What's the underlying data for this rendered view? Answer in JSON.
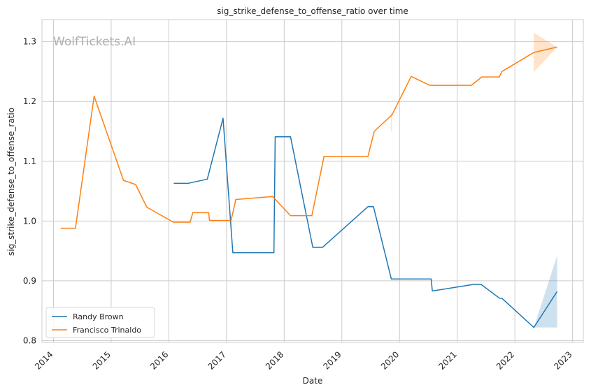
{
  "chart_data": {
    "type": "line",
    "title": "sig_strike_defense_to_offense_ratio over time",
    "xlabel": "Date",
    "ylabel": "sig_strike_defense_to_offense_ratio",
    "watermark": "WolfTickets.AI",
    "xlim": [
      "2013-10-20",
      "2023-03-10"
    ],
    "ylim": [
      0.797,
      1.337
    ],
    "x_ticks": [
      "2014",
      "2015",
      "2016",
      "2017",
      "2018",
      "2019",
      "2020",
      "2021",
      "2022",
      "2023"
    ],
    "y_ticks": [
      "0.8",
      "0.9",
      "1.0",
      "1.1",
      "1.2",
      "1.3"
    ],
    "grid": true,
    "legend_position": "lower-left",
    "series": [
      {
        "name": "Randy Brown",
        "color": "#1f77b4",
        "points": [
          [
            "2016-02-01",
            1.063
          ],
          [
            "2016-05-01",
            1.063
          ],
          [
            "2016-09-01",
            1.07
          ],
          [
            "2016-12-10",
            1.172
          ],
          [
            "2017-02-10",
            0.947
          ],
          [
            "2017-10-28",
            0.947
          ],
          [
            "2017-11-05",
            1.141
          ],
          [
            "2018-02-10",
            1.141
          ],
          [
            "2018-07-01",
            0.956
          ],
          [
            "2018-09-01",
            0.956
          ],
          [
            "2019-06-15",
            1.024
          ],
          [
            "2019-07-20",
            1.024
          ],
          [
            "2019-11-10",
            0.903
          ],
          [
            "2020-07-20",
            0.903
          ],
          [
            "2020-07-27",
            0.883
          ],
          [
            "2021-04-15",
            0.894
          ],
          [
            "2021-06-01",
            0.894
          ],
          [
            "2021-09-25",
            0.871
          ],
          [
            "2021-10-10",
            0.871
          ],
          [
            "2022-05-01",
            0.822
          ],
          [
            "2022-09-25",
            0.882
          ]
        ],
        "band": [
          [
            "2022-05-01",
            0.822,
            0.822
          ],
          [
            "2022-09-25",
            0.822,
            0.942
          ]
        ]
      },
      {
        "name": "Francisco Trinaldo",
        "color": "#ff7f0e",
        "points": [
          [
            "2014-02-15",
            0.988
          ],
          [
            "2014-05-20",
            0.988
          ],
          [
            "2014-09-15",
            1.209
          ],
          [
            "2015-03-20",
            1.068
          ],
          [
            "2015-06-05",
            1.061
          ],
          [
            "2015-08-15",
            1.023
          ],
          [
            "2016-01-30",
            0.998
          ],
          [
            "2016-05-15",
            0.998
          ],
          [
            "2016-06-01",
            1.014
          ],
          [
            "2016-09-10",
            1.014
          ],
          [
            "2016-09-15",
            1.001
          ],
          [
            "2017-01-30",
            1.001
          ],
          [
            "2017-03-01",
            1.036
          ],
          [
            "2017-10-20",
            1.041
          ],
          [
            "2018-02-10",
            1.009
          ],
          [
            "2018-06-25",
            1.009
          ],
          [
            "2018-09-10",
            1.108
          ],
          [
            "2019-06-15",
            1.108
          ],
          [
            "2019-07-25",
            1.15
          ],
          [
            "2019-11-15",
            1.178
          ],
          [
            "2020-03-15",
            1.242
          ],
          [
            "2020-07-10",
            1.227
          ],
          [
            "2021-04-01",
            1.227
          ],
          [
            "2021-06-05",
            1.241
          ],
          [
            "2021-09-25",
            1.241
          ],
          [
            "2021-10-10",
            1.25
          ],
          [
            "2022-05-01",
            1.282
          ],
          [
            "2022-09-25",
            1.291
          ]
        ],
        "band": [
          [
            "2022-05-01",
            1.249,
            1.315
          ],
          [
            "2022-09-25",
            1.291,
            1.291
          ]
        ],
        "band_sliver": [
          [
            "2019-11-10",
            1.15,
            1.182
          ],
          [
            "2019-11-12",
            1.15,
            1.182
          ]
        ]
      }
    ]
  }
}
